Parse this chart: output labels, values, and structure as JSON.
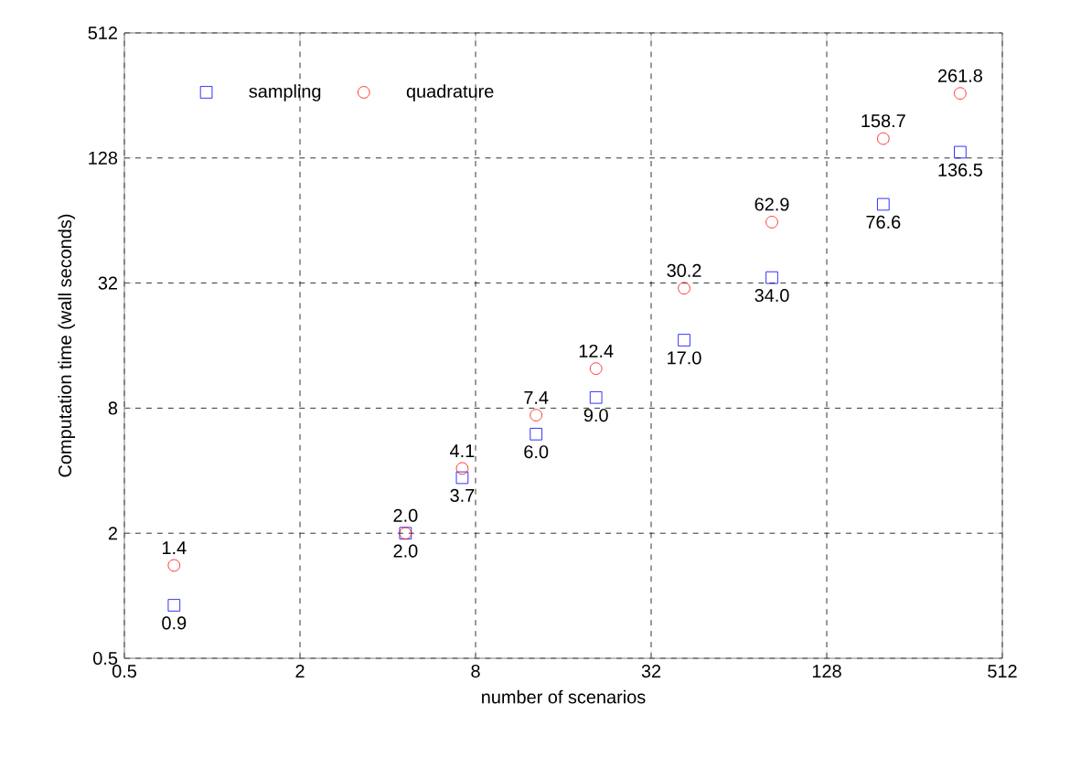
{
  "chart_data": {
    "type": "scatter",
    "xlabel": "number of scenarios",
    "ylabel": "Computation time (wall seconds)",
    "x": [
      0.74,
      4.6,
      7.2,
      12.9,
      20.7,
      41.5,
      83,
      200,
      367
    ],
    "series": [
      {
        "name": "sampling",
        "color": "#0000ff",
        "marker": "square",
        "values": [
          0.9,
          2.0,
          3.7,
          6.0,
          9.0,
          17.0,
          34.0,
          76.6,
          136.5
        ],
        "value_labels": [
          "0.9",
          "2.0",
          "3.7",
          "6.0",
          "9.0",
          "17.0",
          "34.0",
          "76.6",
          "136.5"
        ]
      },
      {
        "name": "quadrature",
        "color": "#ff0000",
        "marker": "circle",
        "values": [
          1.4,
          2.0,
          4.1,
          7.4,
          12.4,
          30.2,
          62.9,
          158.7,
          261.8
        ],
        "value_labels": [
          "1.4",
          "2.0",
          "4.1",
          "7.4",
          "12.4",
          "30.2",
          "62.9",
          "158.7",
          "261.8"
        ]
      }
    ],
    "log": "xy",
    "xlim": [
      0.5,
      512
    ],
    "ylim": [
      0.5,
      512
    ],
    "xticks": [
      0.5,
      2,
      8,
      32,
      128,
      512
    ],
    "yticks": [
      0.5,
      2,
      8,
      32,
      128,
      512
    ],
    "grid": true,
    "legend": "top left"
  }
}
